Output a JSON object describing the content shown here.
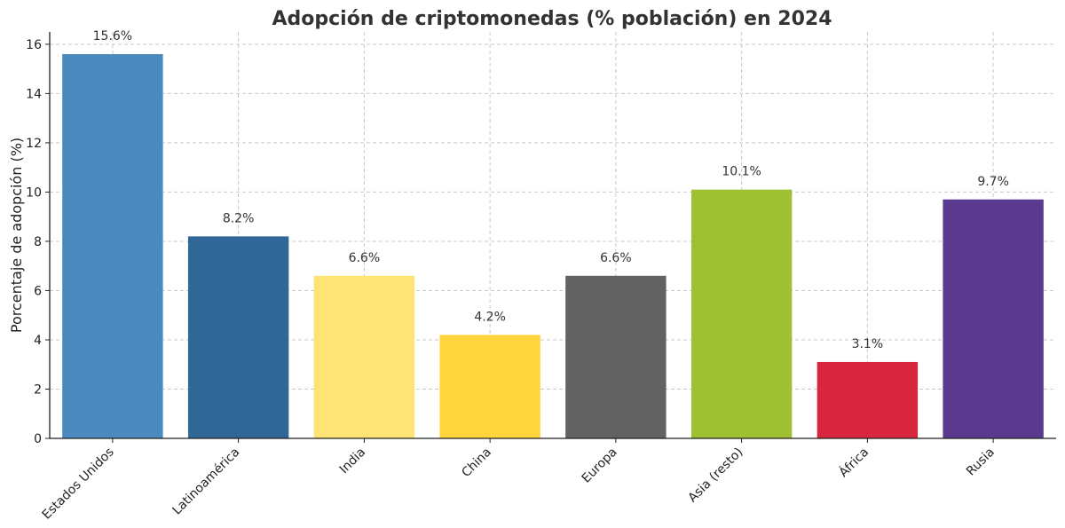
{
  "chart_data": {
    "type": "bar",
    "title": "Adopción de criptomonedas (% población) en 2024",
    "xlabel": "",
    "ylabel": "Porcentaje de adopción (%)",
    "ylim": [
      0,
      16.5
    ],
    "yticks": [
      0,
      2,
      4,
      6,
      8,
      10,
      12,
      14,
      16
    ],
    "grid": true,
    "categories": [
      "Estados Unidos",
      "Latinoamérica",
      "India",
      "China",
      "Europa",
      "Asia (resto)",
      "África",
      "Rusia"
    ],
    "values": [
      15.6,
      8.2,
      6.6,
      4.2,
      6.6,
      10.1,
      3.1,
      9.7
    ],
    "data_labels": [
      "15.6%",
      "8.2%",
      "6.6%",
      "4.2%",
      "6.6%",
      "10.1%",
      "3.1%",
      "9.7%"
    ],
    "colors": [
      "#4a8abf",
      "#316796",
      "#fde474",
      "#fed53c",
      "#626262",
      "#a0c034",
      "#d7263d",
      "#5a3a8e"
    ]
  }
}
